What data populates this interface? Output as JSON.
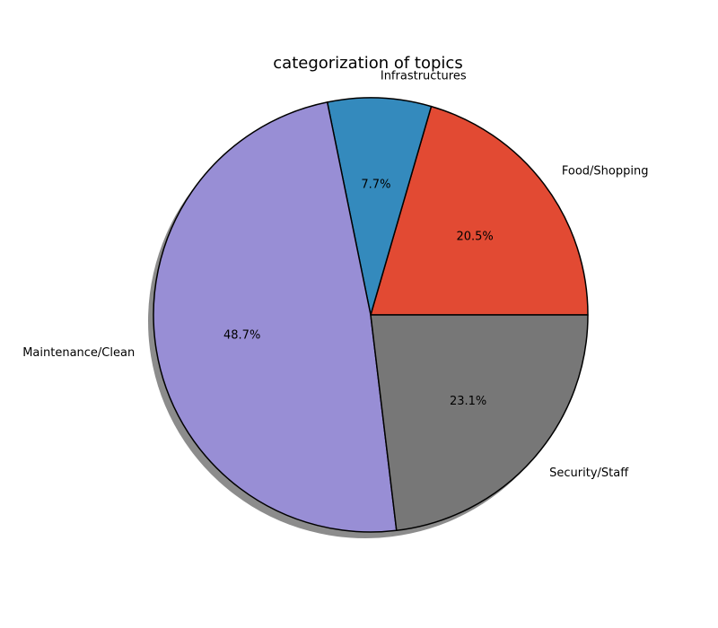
{
  "chart_data": {
    "type": "pie",
    "title": "categorization of topics",
    "categories": [
      "Food/Shopping",
      "Infrastructures",
      "Maintenance/Clean",
      "Security/Staff"
    ],
    "values": [
      20.5,
      7.7,
      48.7,
      23.1
    ],
    "percent_labels": [
      "20.5%",
      "7.7%",
      "48.7%",
      "23.1%"
    ],
    "colors": [
      "#E24A33",
      "#348ABD",
      "#988ED5",
      "#777777"
    ],
    "start_angle_deg": 0,
    "direction": "counterclockwise",
    "shadow": true,
    "edge_color": "#000000",
    "legend": "none"
  }
}
